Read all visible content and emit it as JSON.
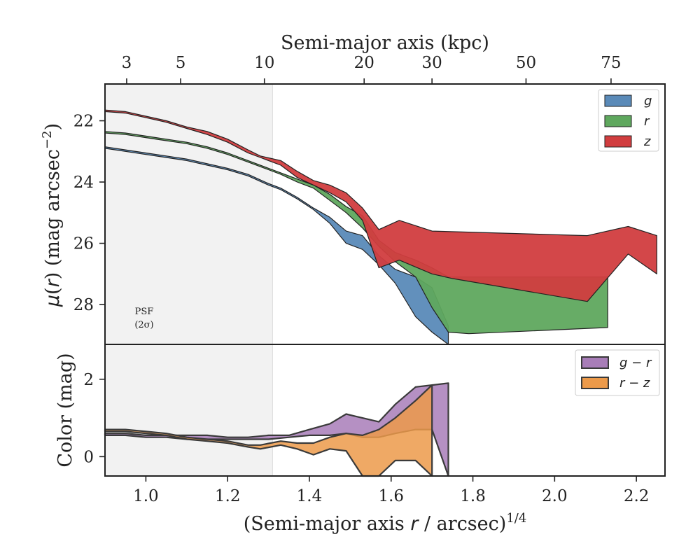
{
  "chart_data": [
    {
      "type": "area",
      "panel": "surface-brightness",
      "xlabel": "(Semi-major axis r / arcsec)^1/4",
      "xlabel_parts": [
        "(Semi-major axis ",
        "r",
        " / arcsec)",
        "1/4"
      ],
      "ylabel": "μ(r) (mag arcsec^-2)",
      "ylabel_parts": [
        "μ",
        "(",
        "r",
        ") (mag arcsec",
        "−2",
        ")"
      ],
      "top_xlabel": "Semi-major axis (kpc)",
      "top_ticks": [
        {
          "label": "3",
          "x": 0.953
        },
        {
          "label": "5",
          "x": 1.085
        },
        {
          "label": "10",
          "x": 1.29
        },
        {
          "label": "20",
          "x": 1.534
        },
        {
          "label": "30",
          "x": 1.7
        },
        {
          "label": "50",
          "x": 1.93
        },
        {
          "label": "75",
          "x": 2.138
        }
      ],
      "xlim": [
        0.9,
        2.27
      ],
      "ylim": [
        29.3,
        20.8
      ],
      "y_inverted": true,
      "yticks": [
        22,
        24,
        26,
        28
      ],
      "xticks": [
        1.0,
        1.2,
        1.4,
        1.6,
        1.8,
        2.0,
        2.2
      ],
      "xtick_labels": [
        "1.0",
        "1.2",
        "1.4",
        "1.6",
        "1.8",
        "2.0",
        "2.2"
      ],
      "psf_region": {
        "x_end": 1.31,
        "label_line1": "PSF",
        "label_line2": "(2σ)",
        "color": "#f2f2f2"
      },
      "legend": {
        "placement": "top-right",
        "entries": [
          "g",
          "r",
          "z"
        ]
      },
      "series": [
        {
          "name": "g",
          "color": "#5a8ab8",
          "upper": [
            [
              0.9,
              22.85
            ],
            [
              0.95,
              22.95
            ],
            [
              1.0,
              23.05
            ],
            [
              1.05,
              23.15
            ],
            [
              1.1,
              23.25
            ],
            [
              1.15,
              23.4
            ],
            [
              1.2,
              23.55
            ],
            [
              1.25,
              23.75
            ],
            [
              1.3,
              24.05
            ],
            [
              1.33,
              24.2
            ],
            [
              1.37,
              24.5
            ],
            [
              1.41,
              24.85
            ],
            [
              1.45,
              25.15
            ],
            [
              1.49,
              25.6
            ],
            [
              1.53,
              25.75
            ],
            [
              1.57,
              26.4
            ],
            [
              1.61,
              26.85
            ],
            [
              1.66,
              27.1
            ],
            [
              1.7,
              27.45
            ],
            [
              1.74,
              28.7
            ]
          ],
          "lower": [
            [
              0.9,
              22.9
            ],
            [
              0.95,
              23.0
            ],
            [
              1.0,
              23.1
            ],
            [
              1.05,
              23.2
            ],
            [
              1.1,
              23.3
            ],
            [
              1.15,
              23.45
            ],
            [
              1.2,
              23.6
            ],
            [
              1.25,
              23.8
            ],
            [
              1.3,
              24.1
            ],
            [
              1.33,
              24.25
            ],
            [
              1.37,
              24.55
            ],
            [
              1.41,
              24.9
            ],
            [
              1.45,
              25.35
            ],
            [
              1.49,
              26.0
            ],
            [
              1.53,
              26.2
            ],
            [
              1.57,
              26.7
            ],
            [
              1.61,
              27.3
            ],
            [
              1.66,
              28.4
            ],
            [
              1.7,
              28.9
            ],
            [
              1.74,
              29.3
            ]
          ]
        },
        {
          "name": "r",
          "color": "#5fa85e",
          "upper": [
            [
              0.9,
              22.35
            ],
            [
              0.95,
              22.4
            ],
            [
              1.0,
              22.5
            ],
            [
              1.05,
              22.6
            ],
            [
              1.1,
              22.7
            ],
            [
              1.15,
              22.85
            ],
            [
              1.2,
              23.05
            ],
            [
              1.25,
              23.3
            ],
            [
              1.3,
              23.55
            ],
            [
              1.33,
              23.7
            ],
            [
              1.37,
              23.9
            ],
            [
              1.41,
              24.1
            ],
            [
              1.45,
              24.4
            ],
            [
              1.49,
              24.8
            ],
            [
              1.53,
              25.1
            ],
            [
              1.57,
              25.9
            ],
            [
              1.61,
              26.3
            ],
            [
              1.66,
              26.55
            ],
            [
              1.7,
              26.8
            ],
            [
              1.74,
              27.1
            ],
            [
              1.8,
              27.1
            ],
            [
              2.13,
              27.1
            ]
          ],
          "lower": [
            [
              0.9,
              22.4
            ],
            [
              0.95,
              22.45
            ],
            [
              1.0,
              22.55
            ],
            [
              1.05,
              22.65
            ],
            [
              1.1,
              22.75
            ],
            [
              1.15,
              22.9
            ],
            [
              1.2,
              23.1
            ],
            [
              1.25,
              23.35
            ],
            [
              1.3,
              23.6
            ],
            [
              1.33,
              23.75
            ],
            [
              1.37,
              24.0
            ],
            [
              1.41,
              24.2
            ],
            [
              1.45,
              24.6
            ],
            [
              1.49,
              25.0
            ],
            [
              1.53,
              25.5
            ],
            [
              1.57,
              26.1
            ],
            [
              1.61,
              26.6
            ],
            [
              1.66,
              27.1
            ],
            [
              1.7,
              28.1
            ],
            [
              1.74,
              28.9
            ],
            [
              1.79,
              28.95
            ],
            [
              2.13,
              28.75
            ]
          ]
        },
        {
          "name": "z",
          "color": "#d13d3f",
          "upper": [
            [
              0.9,
              21.65
            ],
            [
              0.95,
              21.7
            ],
            [
              1.0,
              21.85
            ],
            [
              1.05,
              22.0
            ],
            [
              1.1,
              22.2
            ],
            [
              1.15,
              22.35
            ],
            [
              1.2,
              22.6
            ],
            [
              1.25,
              22.95
            ],
            [
              1.28,
              23.15
            ],
            [
              1.33,
              23.3
            ],
            [
              1.37,
              23.65
            ],
            [
              1.41,
              23.95
            ],
            [
              1.45,
              24.1
            ],
            [
              1.49,
              24.35
            ],
            [
              1.53,
              24.85
            ],
            [
              1.57,
              25.55
            ],
            [
              1.62,
              25.25
            ],
            [
              1.7,
              25.6
            ],
            [
              2.08,
              25.75
            ],
            [
              2.18,
              25.45
            ],
            [
              2.25,
              25.75
            ]
          ],
          "lower": [
            [
              0.9,
              21.7
            ],
            [
              0.95,
              21.75
            ],
            [
              1.0,
              21.9
            ],
            [
              1.05,
              22.05
            ],
            [
              1.1,
              22.25
            ],
            [
              1.15,
              22.45
            ],
            [
              1.2,
              22.7
            ],
            [
              1.25,
              23.05
            ],
            [
              1.28,
              23.2
            ],
            [
              1.33,
              23.45
            ],
            [
              1.37,
              23.85
            ],
            [
              1.41,
              24.1
            ],
            [
              1.45,
              24.35
            ],
            [
              1.49,
              24.65
            ],
            [
              1.53,
              25.25
            ],
            [
              1.57,
              26.8
            ],
            [
              1.62,
              26.55
            ],
            [
              1.7,
              27.0
            ],
            [
              1.75,
              27.15
            ],
            [
              2.08,
              27.9
            ],
            [
              2.18,
              26.35
            ],
            [
              2.25,
              27.0
            ]
          ]
        }
      ]
    },
    {
      "type": "area",
      "panel": "color",
      "ylabel": "Color (mag)",
      "xlim": [
        0.9,
        2.27
      ],
      "ylim": [
        -0.5,
        2.9
      ],
      "yticks": [
        0,
        2
      ],
      "legend": {
        "placement": "top-right",
        "entries": [
          "g − r",
          "r − z"
        ]
      },
      "series": [
        {
          "name": "g − r",
          "color": "#a87db8",
          "upper": [
            [
              0.9,
              0.6
            ],
            [
              0.95,
              0.6
            ],
            [
              1.0,
              0.55
            ],
            [
              1.05,
              0.55
            ],
            [
              1.1,
              0.55
            ],
            [
              1.15,
              0.55
            ],
            [
              1.2,
              0.5
            ],
            [
              1.25,
              0.5
            ],
            [
              1.3,
              0.55
            ],
            [
              1.35,
              0.55
            ],
            [
              1.4,
              0.7
            ],
            [
              1.45,
              0.85
            ],
            [
              1.49,
              1.1
            ],
            [
              1.53,
              1.0
            ],
            [
              1.57,
              0.9
            ],
            [
              1.61,
              1.35
            ],
            [
              1.66,
              1.8
            ],
            [
              1.7,
              1.85
            ],
            [
              1.74,
              1.9
            ]
          ],
          "lower": [
            [
              0.9,
              0.55
            ],
            [
              0.95,
              0.55
            ],
            [
              1.0,
              0.5
            ],
            [
              1.05,
              0.5
            ],
            [
              1.1,
              0.45
            ],
            [
              1.15,
              0.45
            ],
            [
              1.2,
              0.45
            ],
            [
              1.25,
              0.45
            ],
            [
              1.3,
              0.45
            ],
            [
              1.35,
              0.5
            ],
            [
              1.4,
              0.55
            ],
            [
              1.45,
              0.55
            ],
            [
              1.49,
              0.6
            ],
            [
              1.53,
              0.5
            ],
            [
              1.57,
              0.5
            ],
            [
              1.61,
              0.6
            ],
            [
              1.66,
              0.7
            ],
            [
              1.7,
              0.7
            ],
            [
              1.74,
              -0.5
            ]
          ]
        },
        {
          "name": "r − z",
          "color": "#ec9a4a",
          "upper": [
            [
              0.9,
              0.7
            ],
            [
              0.95,
              0.7
            ],
            [
              1.0,
              0.65
            ],
            [
              1.05,
              0.6
            ],
            [
              1.1,
              0.5
            ],
            [
              1.15,
              0.45
            ],
            [
              1.2,
              0.4
            ],
            [
              1.25,
              0.3
            ],
            [
              1.28,
              0.3
            ],
            [
              1.33,
              0.4
            ],
            [
              1.37,
              0.35
            ],
            [
              1.41,
              0.35
            ],
            [
              1.45,
              0.5
            ],
            [
              1.49,
              0.6
            ],
            [
              1.53,
              0.55
            ],
            [
              1.57,
              0.7
            ],
            [
              1.61,
              1.0
            ],
            [
              1.66,
              1.45
            ],
            [
              1.7,
              1.85
            ]
          ],
          "lower": [
            [
              0.9,
              0.65
            ],
            [
              0.95,
              0.65
            ],
            [
              1.0,
              0.6
            ],
            [
              1.05,
              0.55
            ],
            [
              1.1,
              0.45
            ],
            [
              1.15,
              0.4
            ],
            [
              1.2,
              0.35
            ],
            [
              1.25,
              0.25
            ],
            [
              1.28,
              0.2
            ],
            [
              1.33,
              0.3
            ],
            [
              1.37,
              0.2
            ],
            [
              1.41,
              0.05
            ],
            [
              1.45,
              0.2
            ],
            [
              1.49,
              0.15
            ],
            [
              1.53,
              -0.5
            ],
            [
              1.57,
              -0.5
            ],
            [
              1.61,
              -0.1
            ],
            [
              1.66,
              -0.1
            ],
            [
              1.7,
              -0.5
            ]
          ]
        }
      ]
    }
  ]
}
